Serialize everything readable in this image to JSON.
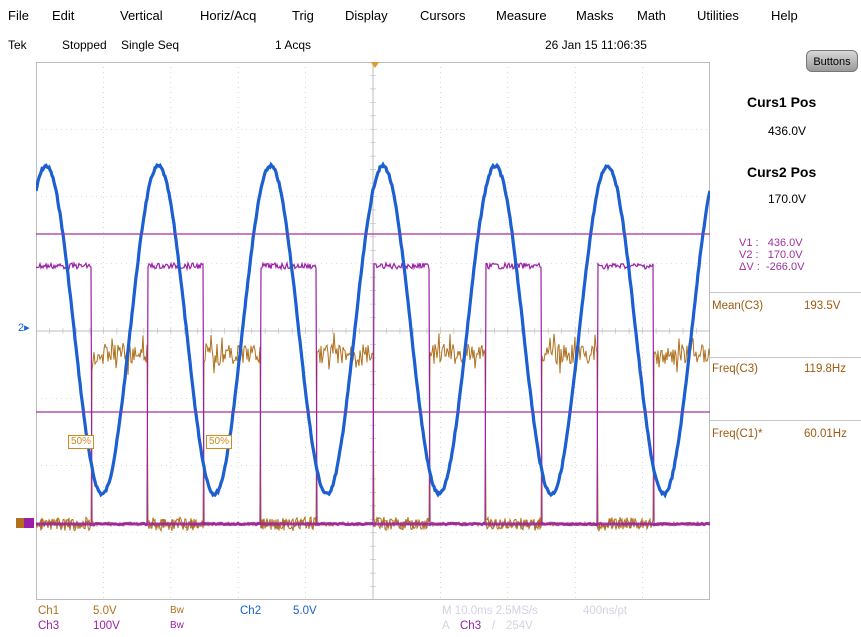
{
  "menu": [
    "File",
    "Edit",
    "Vertical",
    "Horiz/Acq",
    "Trig",
    "Display",
    "Cursors",
    "Measure",
    "Masks",
    "Math",
    "Utilities",
    "Help"
  ],
  "status": {
    "brand": "Tek",
    "state": "Stopped",
    "mode": "Single Seq",
    "acqs": "1 Acqs",
    "datetime": "26 Jan 15 11:06:35"
  },
  "buttons_label": "Buttons",
  "cursors": {
    "curs1_title": "Curs1 Pos",
    "curs1_value": "436.0V",
    "curs2_title": "Curs2 Pos",
    "curs2_value": "170.0V",
    "readout_v1": "V1 :   436.0V",
    "readout_v2": "V2 :   170.0V",
    "readout_dv": "ΔV :  -266.0V"
  },
  "measurements": [
    {
      "label": "Mean(C3)",
      "value": "193.5V"
    },
    {
      "label": "Freq(C3)",
      "value": "119.8Hz"
    },
    {
      "label": "Freq(C1)*",
      "value": "60.01Hz"
    }
  ],
  "markers": {
    "ch2": "2",
    "level_label": "50%"
  },
  "channels": {
    "ch1_name": "Ch1",
    "ch1_scale": "5.0V",
    "ch1_bw": "Bw",
    "ch2_name": "Ch2",
    "ch2_scale": "5.0V",
    "ch3_name": "Ch3",
    "ch3_scale": "100V",
    "ch3_bw": "Bw"
  },
  "acquisition": {
    "timebase": "M 10.0ms 2.5MS/s",
    "record": "400ns/pt",
    "trigger_prefix": "A",
    "trigger_source": "Ch3",
    "trigger_slope": "/",
    "trigger_level": "254V"
  },
  "colors": {
    "ch1": "#b0701e",
    "ch2": "#1c5fd0",
    "ch3": "#9a1fa6",
    "cursor": "#a030a0",
    "grid": "#bcbcbc"
  },
  "waveforms": {
    "sine_frequency_hz": 60.01,
    "square_frequency_hz": 119.8,
    "time_per_div_ms": 10
  }
}
